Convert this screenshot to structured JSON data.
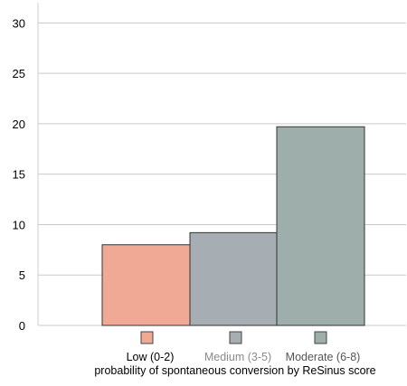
{
  "chart_data": {
    "type": "bar",
    "categories": [
      "Low (0-2)",
      "Medium (3-5)",
      "Moderate (6-8)"
    ],
    "values": [
      8,
      9.2,
      19.7
    ],
    "colors": [
      "#f0a994",
      "#a6adb3",
      "#9eaeaa"
    ],
    "category_label_colors": [
      "#000000",
      "#8a8a8a",
      "#555555"
    ],
    "title": "",
    "xlabel": "probability of spontaneous conversion by ReSinus score",
    "ylabel": "",
    "ylim": [
      0,
      32
    ],
    "yticks": [
      0,
      5,
      10,
      15,
      20,
      25,
      30
    ],
    "grid": true,
    "legend": "bottom"
  }
}
